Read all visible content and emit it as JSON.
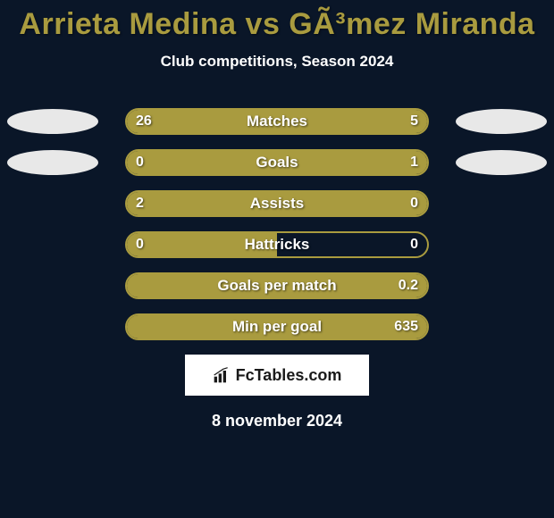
{
  "title": "Arrieta Medina vs GÃ³mez Miranda",
  "subtitle": "Club competitions, Season 2024",
  "date": "8 november 2024",
  "logo_text": "FcTables.com",
  "colors": {
    "background": "#0a1628",
    "accent": "#a99b3f",
    "text": "#ffffff",
    "logo_bg": "#ffffff",
    "logo_text": "#1a1a1a",
    "flag": "#e8e8e8"
  },
  "stats": [
    {
      "label": "Matches",
      "left_value": "26",
      "right_value": "5",
      "left_pct": 79,
      "right_pct": 21,
      "show_left_flag": true,
      "show_right_flag": true
    },
    {
      "label": "Goals",
      "left_value": "0",
      "right_value": "1",
      "left_pct": 18,
      "right_pct": 82,
      "show_left_flag": true,
      "show_right_flag": true
    },
    {
      "label": "Assists",
      "left_value": "2",
      "right_value": "0",
      "left_pct": 100,
      "right_pct": 0,
      "show_left_flag": false,
      "show_right_flag": false
    },
    {
      "label": "Hattricks",
      "left_value": "0",
      "right_value": "0",
      "left_pct": 50,
      "right_pct": 0,
      "show_left_flag": false,
      "show_right_flag": false
    },
    {
      "label": "Goals per match",
      "left_value": "",
      "right_value": "0.2",
      "left_pct": 100,
      "right_pct": 0,
      "show_left_flag": false,
      "show_right_flag": false
    },
    {
      "label": "Min per goal",
      "left_value": "",
      "right_value": "635",
      "left_pct": 100,
      "right_pct": 0,
      "show_left_flag": false,
      "show_right_flag": false
    }
  ]
}
